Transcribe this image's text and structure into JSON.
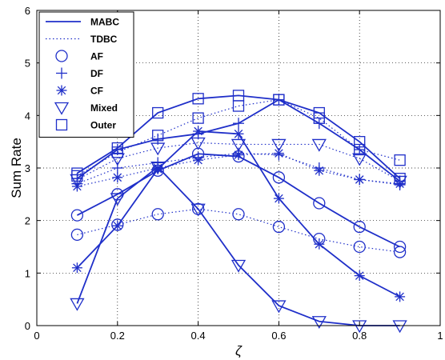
{
  "chart_data": {
    "type": "line",
    "xlabel": "ζ",
    "ylabel": "Sum Rate",
    "xlim": [
      0,
      1
    ],
    "ylim": [
      0,
      6
    ],
    "xticks": [
      "0",
      "0.2",
      "0.4",
      "0.6",
      "0.8",
      "1"
    ],
    "yticks": [
      "0",
      "1",
      "2",
      "3",
      "4",
      "5",
      "6"
    ],
    "grid": true,
    "legend_position": "top-left",
    "color": "#1f2fc9",
    "x": [
      0.1,
      0.2,
      0.3,
      0.4,
      0.5,
      0.6,
      0.7,
      0.8,
      0.9
    ],
    "legend": [
      {
        "label": "MABC",
        "style": "solid"
      },
      {
        "label": "TDBC",
        "style": "dotted"
      },
      {
        "label": "AF",
        "marker": "circle"
      },
      {
        "label": "DF",
        "marker": "plus"
      },
      {
        "label": "CF",
        "marker": "asterisk"
      },
      {
        "label": "Mixed",
        "marker": "triangle-down"
      },
      {
        "label": "Outer",
        "marker": "square"
      }
    ],
    "series": [
      {
        "protocol": "MABC",
        "scheme": "AF",
        "style": "solid",
        "marker": "circle",
        "values": [
          2.1,
          2.5,
          2.95,
          3.27,
          3.22,
          2.82,
          2.33,
          1.88,
          1.5
        ]
      },
      {
        "protocol": "MABC",
        "scheme": "DF",
        "style": "solid",
        "marker": "plus",
        "values": [
          2.8,
          3.35,
          3.55,
          3.65,
          3.85,
          4.3,
          3.85,
          3.35,
          2.75
        ]
      },
      {
        "protocol": "MABC",
        "scheme": "CF",
        "style": "solid",
        "marker": "asterisk",
        "values": [
          1.1,
          1.9,
          2.98,
          3.7,
          3.65,
          2.42,
          1.55,
          0.95,
          0.55
        ]
      },
      {
        "protocol": "MABC",
        "scheme": "Mixed",
        "style": "solid",
        "marker": "triangle-down",
        "values": [
          0.42,
          2.42,
          3.02,
          2.22,
          1.15,
          0.38,
          0.08,
          0.0,
          0.0
        ]
      },
      {
        "protocol": "MABC",
        "scheme": "Outer",
        "style": "solid",
        "marker": "square",
        "values": [
          2.9,
          3.38,
          4.05,
          4.32,
          4.38,
          4.3,
          4.05,
          3.5,
          2.8
        ]
      },
      {
        "protocol": "TDBC",
        "scheme": "AF",
        "style": "dotted",
        "marker": "circle",
        "values": [
          1.73,
          1.92,
          2.12,
          2.22,
          2.12,
          1.88,
          1.65,
          1.5,
          1.4
        ]
      },
      {
        "protocol": "TDBC",
        "scheme": "DF",
        "style": "dotted",
        "marker": "plus",
        "values": [
          2.7,
          3.0,
          3.1,
          3.2,
          3.28,
          3.25,
          3.0,
          2.78,
          2.68
        ]
      },
      {
        "protocol": "TDBC",
        "scheme": "CF",
        "style": "dotted",
        "marker": "asterisk",
        "values": [
          2.65,
          2.82,
          3.0,
          3.15,
          3.25,
          3.28,
          2.95,
          2.78,
          2.7
        ]
      },
      {
        "protocol": "TDBC",
        "scheme": "Mixed",
        "style": "dotted",
        "marker": "triangle-down",
        "values": [
          2.78,
          3.18,
          3.38,
          3.48,
          3.45,
          3.45,
          3.45,
          3.18,
          2.75
        ]
      },
      {
        "protocol": "TDBC",
        "scheme": "Outer",
        "style": "dotted",
        "marker": "square",
        "values": [
          2.85,
          3.3,
          3.62,
          3.95,
          4.18,
          4.3,
          3.95,
          3.35,
          3.15
        ]
      }
    ]
  }
}
